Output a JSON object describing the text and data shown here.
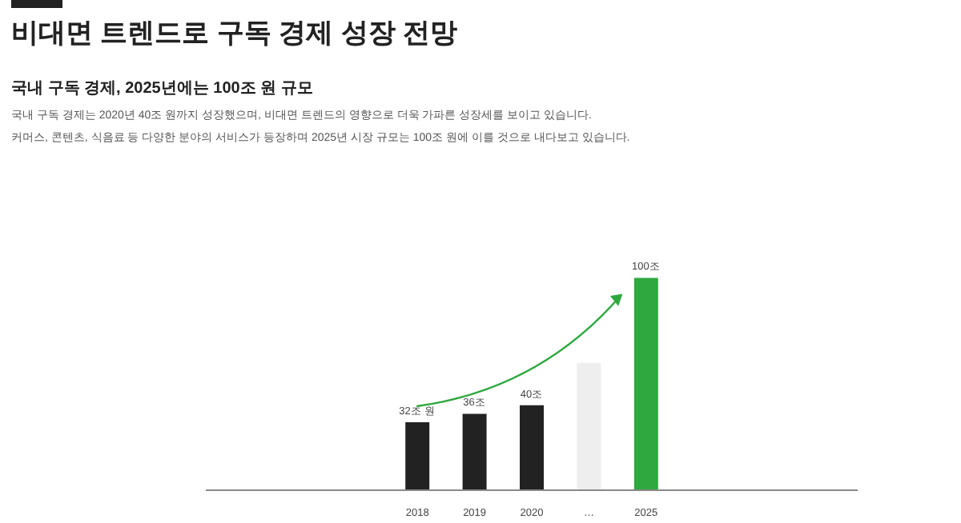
{
  "chart_data": {
    "type": "bar",
    "title": "비대면 트렌드로 구독 경제 성장 전망",
    "subtitle": "국내 구독 경제, 2025년에는 100조 원 규모",
    "annotations": [
      "국내 구독 경제는 2020년 40조 원까지 성장했으며, 비대면 트렌드의 영향으로 더욱 가파른 성장세를 보이고 있습니다.",
      "커머스, 콘텐츠, 식음료 등 다양한 분야의 서비스가 등장하며 2025년 시장 규모는 100조 원에 이를 것으로 내다보고 있습니다."
    ],
    "categories": [
      "2018",
      "2019",
      "2020",
      "…",
      "2025"
    ],
    "values": [
      32,
      36,
      40,
      60,
      100
    ],
    "colors": [
      "#222222",
      "#222222",
      "#222222",
      "#eeeeee",
      "#2ea83f"
    ],
    "value_labels": [
      "32조 원",
      "36조",
      "40조",
      null,
      "100조"
    ],
    "grid": false
  }
}
